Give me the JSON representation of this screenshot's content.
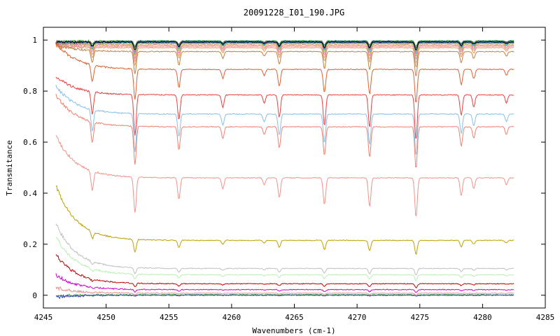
{
  "chart_data": {
    "type": "line",
    "title": "20091228_I01_190.JPG",
    "xlabel": "Wavenumbers (cm-1)",
    "ylabel": "Transmitance",
    "xlim": [
      4245,
      4285
    ],
    "ylim": [
      -0.05,
      1.05
    ],
    "xticks": [
      "4245",
      "4250",
      "4255",
      "4260",
      "4265",
      "4270",
      "4275",
      "4280",
      "4285"
    ],
    "yticks": [
      "0",
      "0.2",
      "0.4",
      "0.6",
      "0.8",
      "1"
    ],
    "grid": false,
    "legend": "none",
    "x_data_range": [
      4246,
      4282.5
    ],
    "absorption_lines": [
      {
        "x": 4248.9,
        "depth": 0.55
      },
      {
        "x": 4252.3,
        "depth": 1.0
      },
      {
        "x": 4255.8,
        "depth": 0.6
      },
      {
        "x": 4259.3,
        "depth": 0.3
      },
      {
        "x": 4262.6,
        "depth": 0.2
      },
      {
        "x": 4263.8,
        "depth": 0.55
      },
      {
        "x": 4267.4,
        "depth": 0.75
      },
      {
        "x": 4271.0,
        "depth": 0.8
      },
      {
        "x": 4274.7,
        "depth": 1.1
      },
      {
        "x": 4278.3,
        "depth": 0.5
      },
      {
        "x": 4279.3,
        "depth": 0.3
      },
      {
        "x": 4281.9,
        "depth": 0.2
      }
    ],
    "series": [
      {
        "color": "#2ca02c",
        "baseline": 0.997,
        "start": 0.99,
        "line_scale": 0.02
      },
      {
        "color": "#1f3c88",
        "baseline": 0.995,
        "start": 0.99,
        "line_scale": 0.025
      },
      {
        "color": "#8c564b",
        "baseline": 0.993,
        "start": 0.99,
        "line_scale": 0.03
      },
      {
        "color": "#9467bd",
        "baseline": 0.99,
        "start": 0.985,
        "line_scale": 0.035
      },
      {
        "color": "#17becf",
        "baseline": 0.988,
        "start": 0.985,
        "line_scale": 0.04
      },
      {
        "color": "#000000",
        "baseline": 0.992,
        "start": 0.99,
        "line_scale": 0.03
      },
      {
        "color": "#bcbd22",
        "baseline": 0.985,
        "start": 0.98,
        "line_scale": 0.045
      },
      {
        "color": "#e377c2",
        "baseline": 0.98,
        "start": 0.98,
        "line_scale": 0.05
      },
      {
        "color": "#ff9896",
        "baseline": 0.975,
        "start": 0.975,
        "line_scale": 0.06
      },
      {
        "color": "#d2a36e",
        "baseline": 0.97,
        "start": 0.975,
        "line_scale": 0.07
      },
      {
        "color": "#c08040",
        "baseline": 0.955,
        "start": 0.98,
        "line_scale": 0.09
      },
      {
        "color": "#e06030",
        "baseline": 0.885,
        "start": 0.99,
        "line_scale": 0.12
      },
      {
        "color": "#e84040",
        "baseline": 0.785,
        "start": 0.86,
        "line_scale": 0.16
      },
      {
        "color": "#88c0e8",
        "baseline": 0.71,
        "start": 0.82,
        "line_scale": 0.15
      },
      {
        "color": "#f08070",
        "baseline": 0.66,
        "start": 0.785,
        "line_scale": 0.15
      },
      {
        "color": "#f0928a",
        "baseline": 0.46,
        "start": 0.625,
        "line_scale": 0.14
      },
      {
        "color": "#c0a000",
        "baseline": 0.215,
        "start": 0.43,
        "line_scale": 0.05
      },
      {
        "color": "#c0c0c0",
        "baseline": 0.105,
        "start": 0.28,
        "line_scale": 0.025
      },
      {
        "color": "#b8f0b0",
        "baseline": 0.08,
        "start": 0.23,
        "line_scale": 0.02
      },
      {
        "color": "#c00000",
        "baseline": 0.045,
        "start": 0.16,
        "line_scale": 0.015
      },
      {
        "color": "#d000d0",
        "baseline": 0.022,
        "start": 0.08,
        "line_scale": 0.01
      },
      {
        "color": "#e89090",
        "baseline": 0.008,
        "start": 0.03,
        "line_scale": 0.006
      },
      {
        "color": "#30a030",
        "baseline": 0.002,
        "start": -0.005,
        "line_scale": 0.004
      },
      {
        "color": "#4040c0",
        "baseline": 0.0,
        "start": -0.008,
        "line_scale": 0.003
      }
    ]
  }
}
